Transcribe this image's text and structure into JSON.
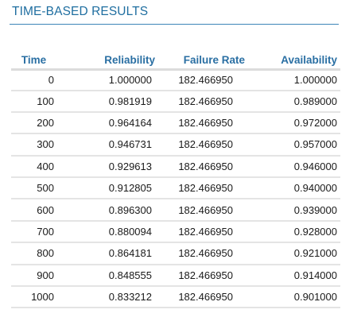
{
  "section": {
    "title": "TIME-BASED RESULTS"
  },
  "table": {
    "headers": {
      "time": "Time",
      "reliability": "Reliability",
      "failure_rate": "Failure Rate",
      "availability": "Availability"
    },
    "rows": [
      {
        "time": "0",
        "reliability": "1.000000",
        "failure_rate": "182.466950",
        "availability": "1.000000"
      },
      {
        "time": "100",
        "reliability": "0.981919",
        "failure_rate": "182.466950",
        "availability": "0.989000"
      },
      {
        "time": "200",
        "reliability": "0.964164",
        "failure_rate": "182.466950",
        "availability": "0.972000"
      },
      {
        "time": "300",
        "reliability": "0.946731",
        "failure_rate": "182.466950",
        "availability": "0.957000"
      },
      {
        "time": "400",
        "reliability": "0.929613",
        "failure_rate": "182.466950",
        "availability": "0.946000"
      },
      {
        "time": "500",
        "reliability": "0.912805",
        "failure_rate": "182.466950",
        "availability": "0.940000"
      },
      {
        "time": "600",
        "reliability": "0.896300",
        "failure_rate": "182.466950",
        "availability": "0.939000"
      },
      {
        "time": "700",
        "reliability": "0.880094",
        "failure_rate": "182.466950",
        "availability": "0.928000"
      },
      {
        "time": "800",
        "reliability": "0.864181",
        "failure_rate": "182.466950",
        "availability": "0.921000"
      },
      {
        "time": "900",
        "reliability": "0.848555",
        "failure_rate": "182.466950",
        "availability": "0.914000"
      },
      {
        "time": "1000",
        "reliability": "0.833212",
        "failure_rate": "182.466950",
        "availability": "0.901000"
      }
    ]
  },
  "colors": {
    "title": "#1f6ea0",
    "header_text": "#2a6fa3",
    "rule": "#3d86b8",
    "row_border": "#e4e4e4"
  }
}
